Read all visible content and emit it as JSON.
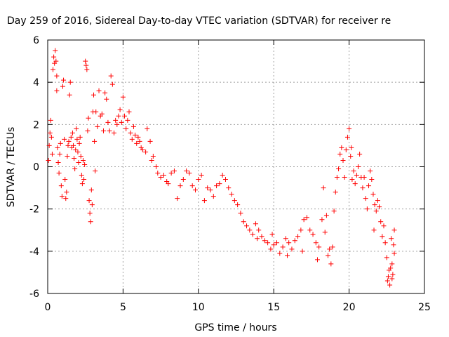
{
  "chart_data": {
    "type": "scatter",
    "title": "Day 259 of 2016, Sidereal Day-to-day VTEC variation (SDTVAR) for receiver re",
    "xlabel": "GPS time / hours",
    "ylabel": "SDTVAR / TECUs",
    "xlim": [
      0,
      25
    ],
    "ylim": [
      -6,
      6
    ],
    "xticks": [
      "0",
      "5",
      "10",
      "15",
      "20",
      "25"
    ],
    "yticks": [
      "-6",
      "-4",
      "-2",
      "0",
      "2",
      "4",
      "6"
    ],
    "xtick_values": [
      0,
      5,
      10,
      15,
      20,
      25
    ],
    "ytick_values": [
      -6,
      -4,
      -2,
      0,
      2,
      4,
      6
    ],
    "grid": true,
    "marker": "+",
    "color": "#ff0000",
    "series": [
      {
        "name": "SDTVAR",
        "points": [
          [
            0.05,
            0.3
          ],
          [
            0.1,
            1.0
          ],
          [
            0.15,
            1.6
          ],
          [
            0.2,
            2.2
          ],
          [
            0.25,
            1.4
          ],
          [
            0.3,
            0.6
          ],
          [
            0.35,
            4.6
          ],
          [
            0.4,
            5.2
          ],
          [
            0.45,
            4.9
          ],
          [
            0.5,
            5.5
          ],
          [
            0.55,
            5.0
          ],
          [
            0.6,
            4.3
          ],
          [
            0.6,
            3.6
          ],
          [
            0.65,
            0.9
          ],
          [
            0.7,
            0.2
          ],
          [
            0.75,
            -0.3
          ],
          [
            0.8,
            0.6
          ],
          [
            0.85,
            1.1
          ],
          [
            0.9,
            -0.9
          ],
          [
            0.95,
            -1.4
          ],
          [
            1.0,
            3.8
          ],
          [
            1.05,
            4.1
          ],
          [
            1.1,
            1.3
          ],
          [
            1.15,
            -0.6
          ],
          [
            1.2,
            -1.5
          ],
          [
            1.25,
            -1.2
          ],
          [
            1.3,
            0.5
          ],
          [
            1.35,
            1.0
          ],
          [
            1.4,
            1.2
          ],
          [
            1.45,
            3.4
          ],
          [
            1.5,
            4.0
          ],
          [
            1.55,
            1.4
          ],
          [
            1.6,
            0.9
          ],
          [
            1.65,
            1.6
          ],
          [
            1.7,
            1.0
          ],
          [
            1.75,
            0.4
          ],
          [
            1.8,
            -0.1
          ],
          [
            1.85,
            0.8
          ],
          [
            1.9,
            1.8
          ],
          [
            1.95,
            1.3
          ],
          [
            2.0,
            0.7
          ],
          [
            2.05,
            0.2
          ],
          [
            2.1,
            1.1
          ],
          [
            2.15,
            1.4
          ],
          [
            2.2,
            0.5
          ],
          [
            2.25,
            -0.4
          ],
          [
            2.3,
            -0.8
          ],
          [
            2.35,
            0.3
          ],
          [
            2.4,
            -0.6
          ],
          [
            2.45,
            0.1
          ],
          [
            2.5,
            5.0
          ],
          [
            2.55,
            4.8
          ],
          [
            2.6,
            4.6
          ],
          [
            2.65,
            1.7
          ],
          [
            2.7,
            2.3
          ],
          [
            2.75,
            -1.6
          ],
          [
            2.8,
            -2.2
          ],
          [
            2.85,
            -2.6
          ],
          [
            2.9,
            -1.1
          ],
          [
            2.95,
            -1.8
          ],
          [
            3.0,
            2.6
          ],
          [
            3.05,
            3.4
          ],
          [
            3.1,
            1.2
          ],
          [
            3.15,
            -0.2
          ],
          [
            3.2,
            2.6
          ],
          [
            3.3,
            1.9
          ],
          [
            3.4,
            3.6
          ],
          [
            3.5,
            2.4
          ],
          [
            3.6,
            2.5
          ],
          [
            3.7,
            1.7
          ],
          [
            3.8,
            3.5
          ],
          [
            3.9,
            3.2
          ],
          [
            4.0,
            2.1
          ],
          [
            4.1,
            1.7
          ],
          [
            4.2,
            4.3
          ],
          [
            4.3,
            3.9
          ],
          [
            4.4,
            1.6
          ],
          [
            4.5,
            2.2
          ],
          [
            4.6,
            2.0
          ],
          [
            4.7,
            2.4
          ],
          [
            4.8,
            2.7
          ],
          [
            4.9,
            2.1
          ],
          [
            5.0,
            3.3
          ],
          [
            5.1,
            2.4
          ],
          [
            5.2,
            1.8
          ],
          [
            5.3,
            2.2
          ],
          [
            5.4,
            2.6
          ],
          [
            5.5,
            1.6
          ],
          [
            5.6,
            1.3
          ],
          [
            5.7,
            1.9
          ],
          [
            5.8,
            1.5
          ],
          [
            5.9,
            1.1
          ],
          [
            6.0,
            1.4
          ],
          [
            6.1,
            1.2
          ],
          [
            6.2,
            0.9
          ],
          [
            6.3,
            0.8
          ],
          [
            6.5,
            0.7
          ],
          [
            6.6,
            1.8
          ],
          [
            6.8,
            1.2
          ],
          [
            6.9,
            0.3
          ],
          [
            7.0,
            0.5
          ],
          [
            7.2,
            0.0
          ],
          [
            7.3,
            -0.3
          ],
          [
            7.5,
            -0.5
          ],
          [
            7.7,
            -0.4
          ],
          [
            7.9,
            -0.7
          ],
          [
            8.0,
            -0.8
          ],
          [
            8.2,
            -0.3
          ],
          [
            8.4,
            -0.2
          ],
          [
            8.6,
            -1.5
          ],
          [
            8.8,
            -0.9
          ],
          [
            9.0,
            -0.6
          ],
          [
            9.2,
            -0.2
          ],
          [
            9.4,
            -0.3
          ],
          [
            9.6,
            -0.9
          ],
          [
            9.8,
            -1.1
          ],
          [
            10.0,
            -0.6
          ],
          [
            10.2,
            -0.4
          ],
          [
            10.4,
            -1.6
          ],
          [
            10.6,
            -1.0
          ],
          [
            10.8,
            -1.1
          ],
          [
            11.0,
            -1.4
          ],
          [
            11.2,
            -0.9
          ],
          [
            11.4,
            -0.8
          ],
          [
            11.6,
            -0.4
          ],
          [
            11.8,
            -0.6
          ],
          [
            12.0,
            -1.0
          ],
          [
            12.2,
            -1.3
          ],
          [
            12.4,
            -1.6
          ],
          [
            12.6,
            -1.8
          ],
          [
            12.8,
            -2.2
          ],
          [
            13.0,
            -2.6
          ],
          [
            13.2,
            -2.8
          ],
          [
            13.4,
            -3.0
          ],
          [
            13.6,
            -3.2
          ],
          [
            13.8,
            -2.7
          ],
          [
            14.0,
            -3.0
          ],
          [
            14.2,
            -3.3
          ],
          [
            14.4,
            -3.5
          ],
          [
            14.6,
            -3.6
          ],
          [
            14.8,
            -3.9
          ],
          [
            15.0,
            -3.7
          ],
          [
            15.2,
            -3.6
          ],
          [
            15.4,
            -4.1
          ],
          [
            15.6,
            -3.8
          ],
          [
            15.8,
            -3.4
          ],
          [
            16.0,
            -3.6
          ],
          [
            16.2,
            -3.9
          ],
          [
            16.4,
            -3.5
          ],
          [
            16.6,
            -3.3
          ],
          [
            16.8,
            -3.0
          ],
          [
            17.0,
            -2.5
          ],
          [
            17.2,
            -2.4
          ],
          [
            17.4,
            -3.0
          ],
          [
            17.6,
            -3.2
          ],
          [
            17.8,
            -3.6
          ],
          [
            18.0,
            -3.8
          ],
          [
            18.2,
            -2.5
          ],
          [
            18.4,
            -3.1
          ],
          [
            18.6,
            -4.2
          ],
          [
            18.8,
            -4.6
          ],
          [
            18.9,
            -3.8
          ],
          [
            19.0,
            -2.1
          ],
          [
            19.1,
            -1.2
          ],
          [
            19.2,
            -0.5
          ],
          [
            19.3,
            -0.1
          ],
          [
            19.4,
            0.6
          ],
          [
            19.5,
            0.9
          ],
          [
            19.6,
            0.3
          ],
          [
            19.7,
            -0.5
          ],
          [
            19.8,
            0.8
          ],
          [
            19.9,
            1.4
          ],
          [
            20.0,
            1.8
          ],
          [
            20.1,
            0.5
          ],
          [
            20.2,
            -0.6
          ],
          [
            20.3,
            -0.2
          ],
          [
            20.4,
            -0.8
          ],
          [
            20.5,
            -0.4
          ],
          [
            20.6,
            0.0
          ],
          [
            20.7,
            0.6
          ],
          [
            20.8,
            -0.5
          ],
          [
            20.9,
            -1.0
          ],
          [
            21.0,
            -0.5
          ],
          [
            21.1,
            -1.5
          ],
          [
            21.2,
            -2.0
          ],
          [
            21.3,
            -0.9
          ],
          [
            21.4,
            -0.2
          ],
          [
            21.5,
            -0.6
          ],
          [
            21.6,
            -1.3
          ],
          [
            21.7,
            -1.8
          ],
          [
            21.8,
            -2.1
          ],
          [
            21.9,
            -1.6
          ],
          [
            22.0,
            -1.9
          ],
          [
            22.1,
            -2.6
          ],
          [
            22.2,
            -3.3
          ],
          [
            22.3,
            -2.8
          ],
          [
            22.4,
            -3.6
          ],
          [
            22.5,
            -4.3
          ],
          [
            22.6,
            -5.2
          ],
          [
            22.7,
            -5.6
          ],
          [
            22.75,
            -4.8
          ],
          [
            22.8,
            -3.4
          ],
          [
            22.85,
            -4.6
          ],
          [
            22.9,
            -5.1
          ],
          [
            22.95,
            -3.7
          ],
          [
            23.0,
            -4.1
          ],
          [
            23.0,
            -3.0
          ],
          [
            22.55,
            -5.4
          ],
          [
            22.65,
            -4.9
          ],
          [
            22.85,
            -5.3
          ],
          [
            18.3,
            -1.0
          ],
          [
            18.5,
            -2.3
          ],
          [
            18.7,
            -3.9
          ],
          [
            20.15,
            0.9
          ],
          [
            21.65,
            -3.0
          ],
          [
            17.9,
            -4.4
          ],
          [
            16.9,
            -4.0
          ],
          [
            15.9,
            -4.2
          ],
          [
            14.9,
            -3.2
          ],
          [
            13.9,
            -3.4
          ]
        ]
      }
    ]
  }
}
